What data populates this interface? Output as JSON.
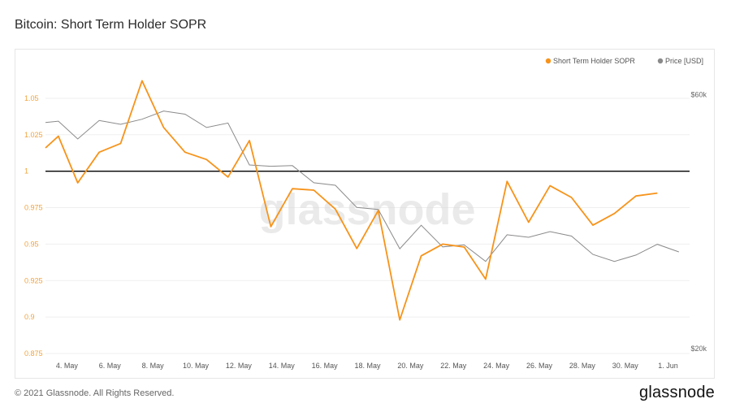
{
  "title": "Bitcoin: Short Term Holder SOPR",
  "footer": {
    "copyright": "© 2021 Glassnode. All Rights Reserved.",
    "brand": "glassnode"
  },
  "watermark": "glassnode",
  "colors": {
    "sopr": "#f7931a",
    "price": "#8a8a8a",
    "baseline": "#000000"
  },
  "chart_data": {
    "type": "line",
    "title": "Bitcoin: Short Term Holder SOPR",
    "legend_position": "top-right",
    "grid": true,
    "x_tick_labels": [
      "4. May",
      "6. May",
      "8. May",
      "10. May",
      "12. May",
      "14. May",
      "16. May",
      "18. May",
      "20. May",
      "22. May",
      "24. May",
      "26. May",
      "28. May",
      "30. May",
      "1. Jun"
    ],
    "x_tick_days": [
      4,
      6,
      8,
      10,
      12,
      14,
      16,
      18,
      20,
      22,
      24,
      26,
      28,
      30,
      32
    ],
    "xlim": [
      3,
      33
    ],
    "ylim": [
      0.875,
      1.06
    ],
    "y_ticks": [
      0.875,
      0.9,
      0.925,
      0.95,
      0.975,
      1,
      1.025,
      1.05
    ],
    "y_tick_labels": [
      "0.875",
      "0.9",
      "0.925",
      "0.95",
      "0.975",
      "1",
      "1.025",
      "1.05"
    ],
    "y2_tick_labels": [
      "$60k",
      "$20k"
    ],
    "y2_ticks": [
      60000,
      20000
    ],
    "y2lim": [
      20000,
      62500
    ],
    "reference_line": 1,
    "series": [
      {
        "name": "Short Term Holder SOPR",
        "axis": "left",
        "x": [
          3,
          3.6,
          4.5,
          5.5,
          6.5,
          7.5,
          8.5,
          9.5,
          10.5,
          11.5,
          12.5,
          13.5,
          14.5,
          15.5,
          16.5,
          17.5,
          18.5,
          19.5,
          20.5,
          21.5,
          22.5,
          23.5,
          24.5,
          25.5,
          26.5,
          27.5,
          28.5,
          29.5,
          30.5,
          31.5
        ],
        "values": [
          1.016,
          1.024,
          0.992,
          1.013,
          1.019,
          1.062,
          1.03,
          1.013,
          1.008,
          0.996,
          1.021,
          0.962,
          0.988,
          0.987,
          0.974,
          0.947,
          0.973,
          0.898,
          0.942,
          0.95,
          0.948,
          0.926,
          0.993,
          0.965,
          0.99,
          0.982,
          0.963,
          0.971,
          0.983,
          0.985
        ]
      },
      {
        "name": "Price [USD]",
        "axis": "right",
        "x": [
          3,
          3.6,
          4.5,
          5.5,
          6.5,
          7.5,
          8.5,
          9.5,
          10.5,
          11.5,
          12.5,
          13.5,
          14.5,
          15.5,
          16.5,
          17.5,
          18.5,
          19.5,
          20.5,
          21.5,
          22.5,
          23.5,
          24.5,
          25.5,
          26.5,
          27.5,
          28.5,
          29.5,
          30.5,
          31.5,
          32.5
        ],
        "values": [
          56400,
          56600,
          53800,
          56700,
          56100,
          56900,
          58200,
          57700,
          55600,
          56300,
          49700,
          49500,
          49600,
          46900,
          46500,
          43000,
          42700,
          36500,
          40200,
          36800,
          37100,
          34500,
          38700,
          38300,
          39200,
          38500,
          35600,
          34500,
          35500,
          37200,
          36000
        ]
      }
    ]
  }
}
